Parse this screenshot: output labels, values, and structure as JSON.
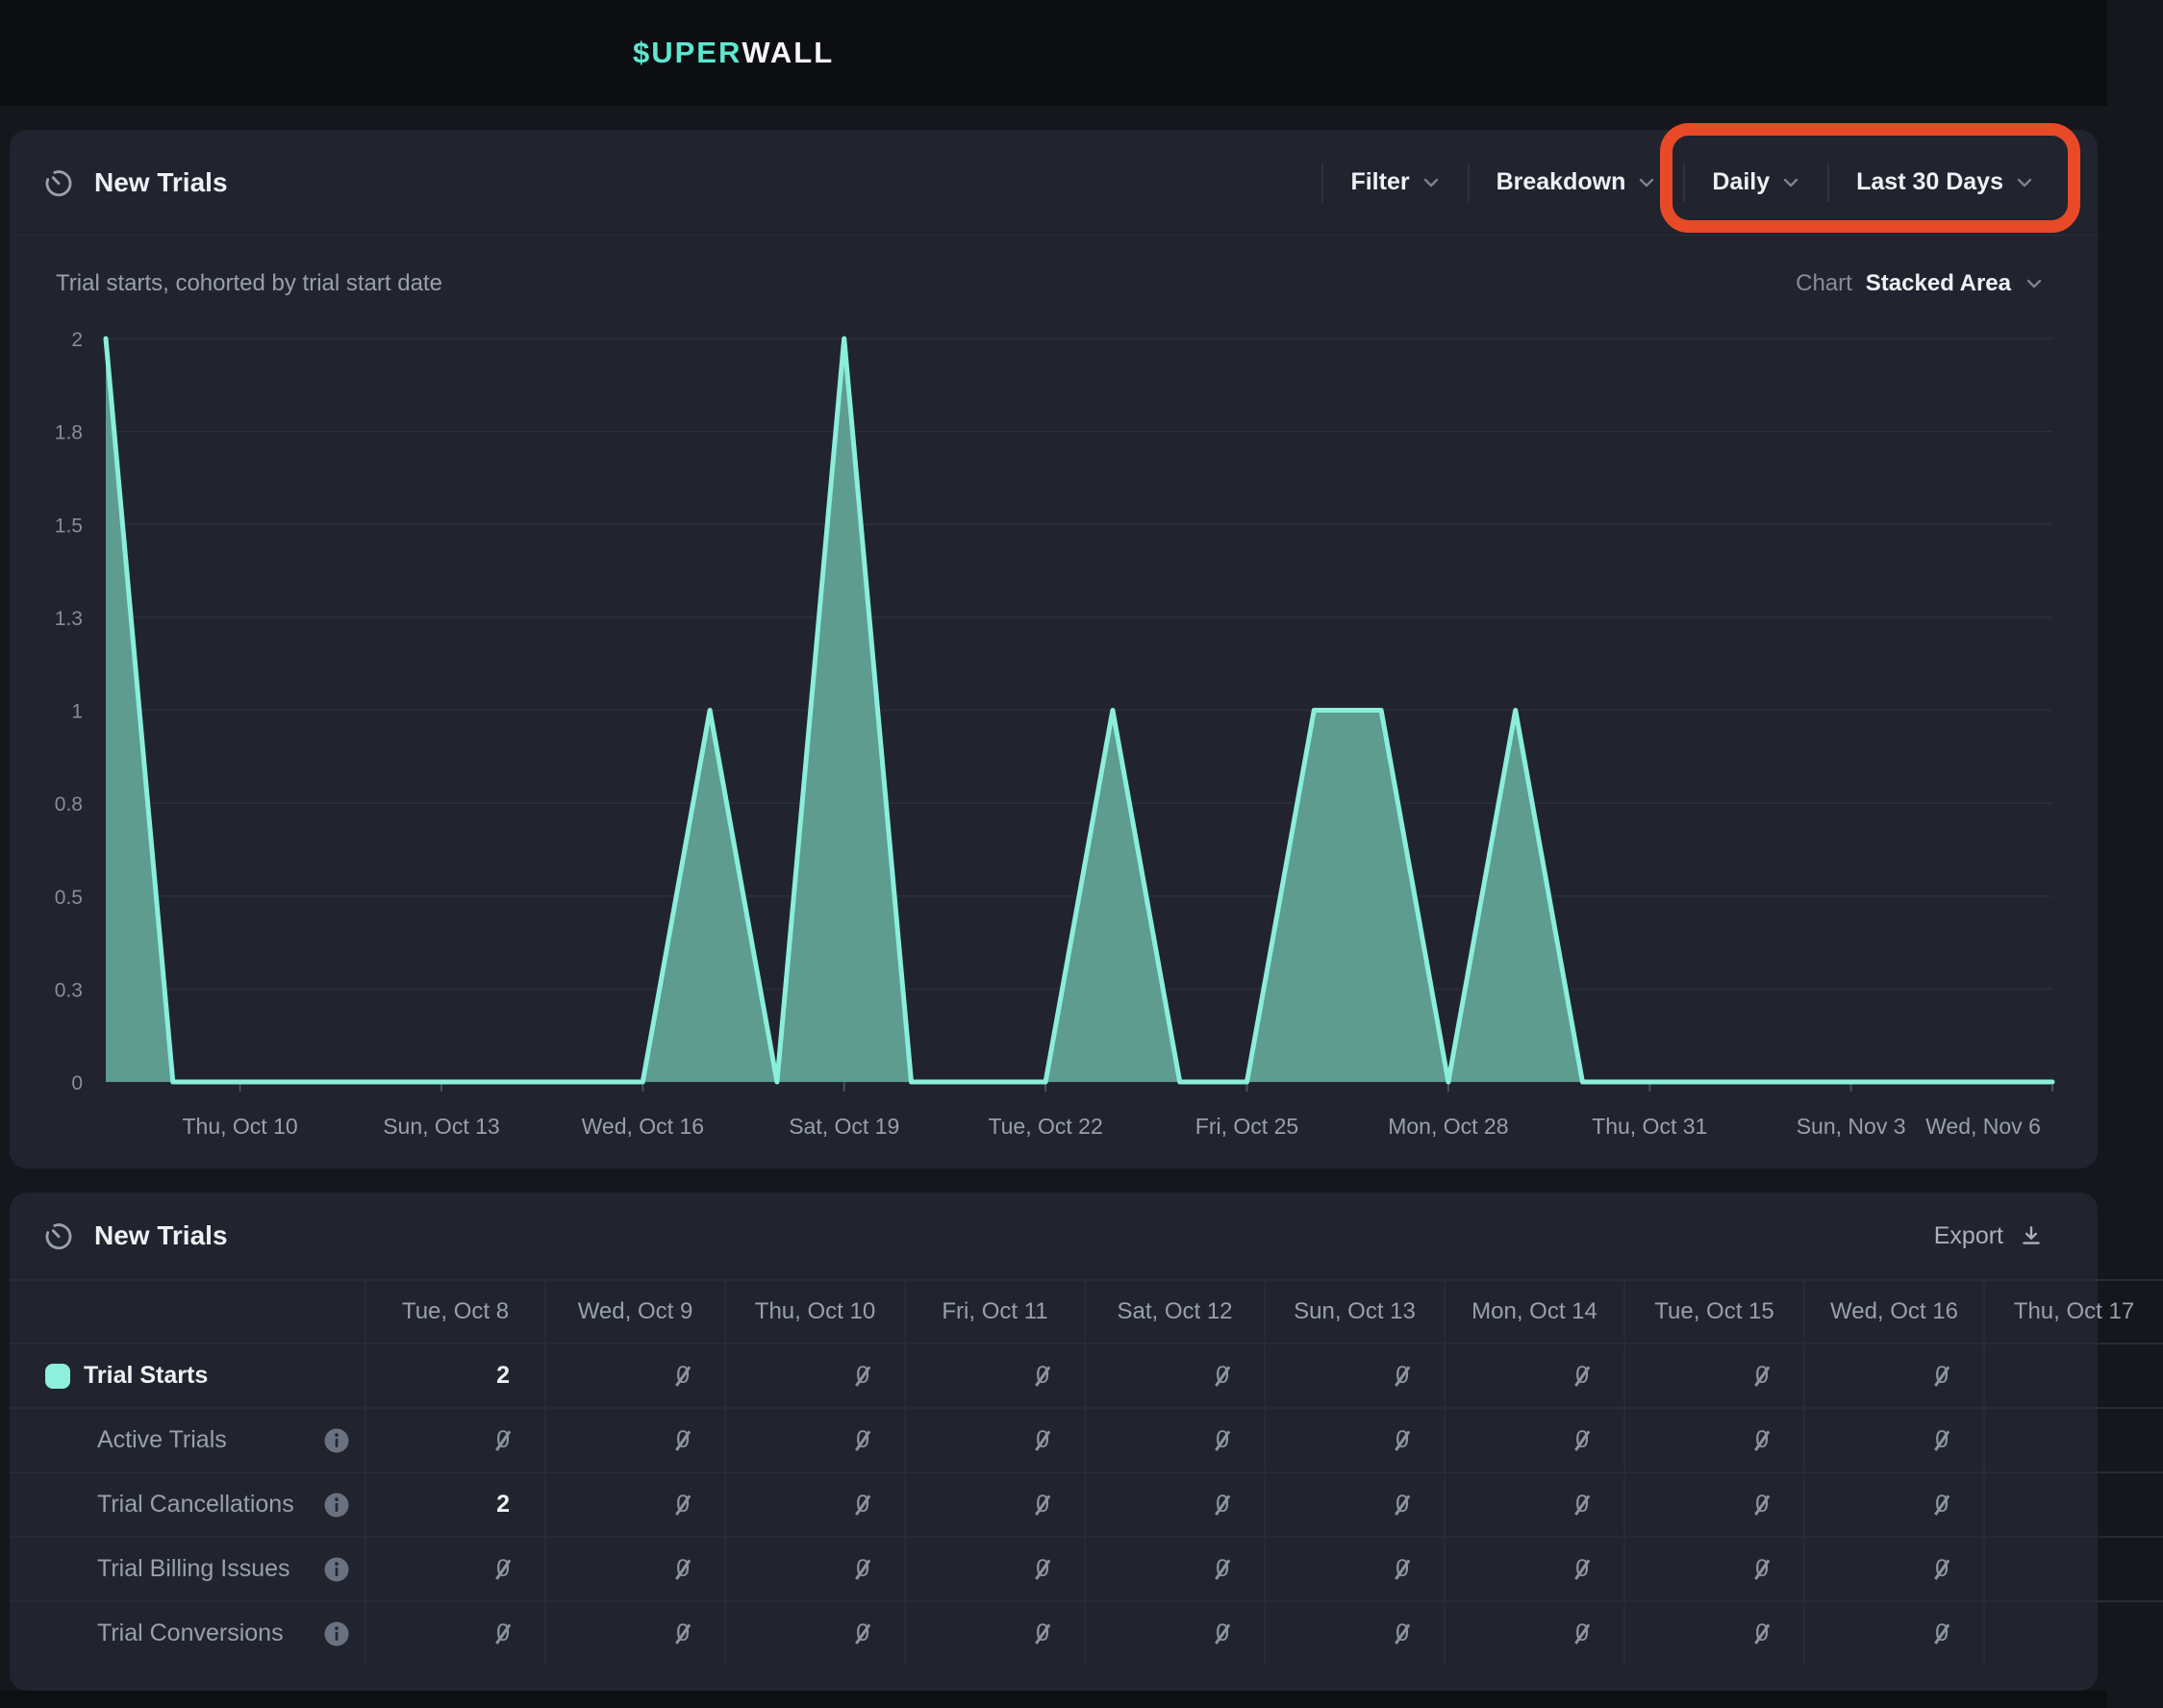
{
  "topbar": {
    "logo_accent": "$UPER",
    "logo_rest": "WALL"
  },
  "chart_panel": {
    "title": "New Trials",
    "subtitle": "Trial starts, cohorted by trial start date",
    "controls": {
      "filter": "Filter",
      "breakdown": "Breakdown",
      "granularity": "Daily",
      "date_range": "Last 30 Days"
    },
    "chart_type_label": "Chart",
    "chart_type_value": "Stacked Area"
  },
  "annotation": {
    "color": "#e84a28",
    "note": "red rounded-rect highlight around Daily and Last 30 Days dropdowns"
  },
  "chart_data": {
    "type": "area",
    "title": "New Trials",
    "series_name": "Trial Starts",
    "x": [
      "Tue, Oct 8",
      "Wed, Oct 9",
      "Thu, Oct 10",
      "Fri, Oct 11",
      "Sat, Oct 12",
      "Sun, Oct 13",
      "Mon, Oct 14",
      "Tue, Oct 15",
      "Wed, Oct 16",
      "Thu, Oct 17",
      "Fri, Oct 18",
      "Sat, Oct 19",
      "Sun, Oct 20",
      "Mon, Oct 21",
      "Tue, Oct 22",
      "Wed, Oct 23",
      "Thu, Oct 24",
      "Fri, Oct 25",
      "Sat, Oct 26",
      "Sun, Oct 27",
      "Mon, Oct 28",
      "Tue, Oct 29",
      "Wed, Oct 30",
      "Thu, Oct 31",
      "Fri, Nov 1",
      "Sat, Nov 2",
      "Sun, Nov 3",
      "Mon, Nov 4",
      "Tue, Nov 5",
      "Wed, Nov 6"
    ],
    "values": [
      2,
      0,
      0,
      0,
      0,
      0,
      0,
      0,
      0,
      1,
      0,
      2,
      0,
      0,
      0,
      1,
      0,
      0,
      1,
      1,
      0,
      1,
      0,
      0,
      0,
      0,
      0,
      0,
      0,
      0
    ],
    "x_tick_indices": [
      2,
      5,
      8,
      11,
      14,
      17,
      20,
      23,
      26,
      29
    ],
    "x_tick_labels": [
      "Thu, Oct 10",
      "Sun, Oct 13",
      "Wed, Oct 16",
      "Sat, Oct 19",
      "Tue, Oct 22",
      "Fri, Oct 25",
      "Mon, Oct 28",
      "Thu, Oct 31",
      "Sun, Nov 3",
      "Wed, Nov 6"
    ],
    "y_ticks": [
      0,
      0.25,
      0.5,
      0.75,
      1,
      1.25,
      1.5,
      1.75,
      2
    ],
    "y_tick_labels": [
      "0",
      "0.3",
      "0.5",
      "0.8",
      "1",
      "1.3",
      "1.5",
      "1.8",
      "2"
    ],
    "ylim": [
      0,
      2
    ],
    "grid": true,
    "legend_position": "none",
    "colors": {
      "stroke": "#8aeedb",
      "fill": "#5d9c8f"
    }
  },
  "table_panel": {
    "title": "New Trials",
    "export_label": "Export",
    "columns": [
      "Tue, Oct 8",
      "Wed, Oct 9",
      "Thu, Oct 10",
      "Fri, Oct 11",
      "Sat, Oct 12",
      "Sun, Oct 13",
      "Mon, Oct 14",
      "Tue, Oct 15",
      "Wed, Oct 16",
      "Thu, Oct 17"
    ],
    "rows": [
      {
        "label": "Trial Starts",
        "swatch": true,
        "info": false,
        "values": [
          "2",
          "0",
          "0",
          "0",
          "0",
          "0",
          "0",
          "0",
          "0",
          ""
        ]
      },
      {
        "label": "Active Trials",
        "swatch": false,
        "info": true,
        "values": [
          "0",
          "0",
          "0",
          "0",
          "0",
          "0",
          "0",
          "0",
          "0",
          ""
        ]
      },
      {
        "label": "Trial Cancellations",
        "swatch": false,
        "info": true,
        "values": [
          "2",
          "0",
          "0",
          "0",
          "0",
          "0",
          "0",
          "0",
          "0",
          ""
        ]
      },
      {
        "label": "Trial Billing Issues",
        "swatch": false,
        "info": true,
        "values": [
          "0",
          "0",
          "0",
          "0",
          "0",
          "0",
          "0",
          "0",
          "0",
          ""
        ]
      },
      {
        "label": "Trial Conversions",
        "swatch": false,
        "info": true,
        "values": [
          "0",
          "0",
          "0",
          "0",
          "0",
          "0",
          "0",
          "0",
          "0",
          ""
        ]
      }
    ]
  }
}
